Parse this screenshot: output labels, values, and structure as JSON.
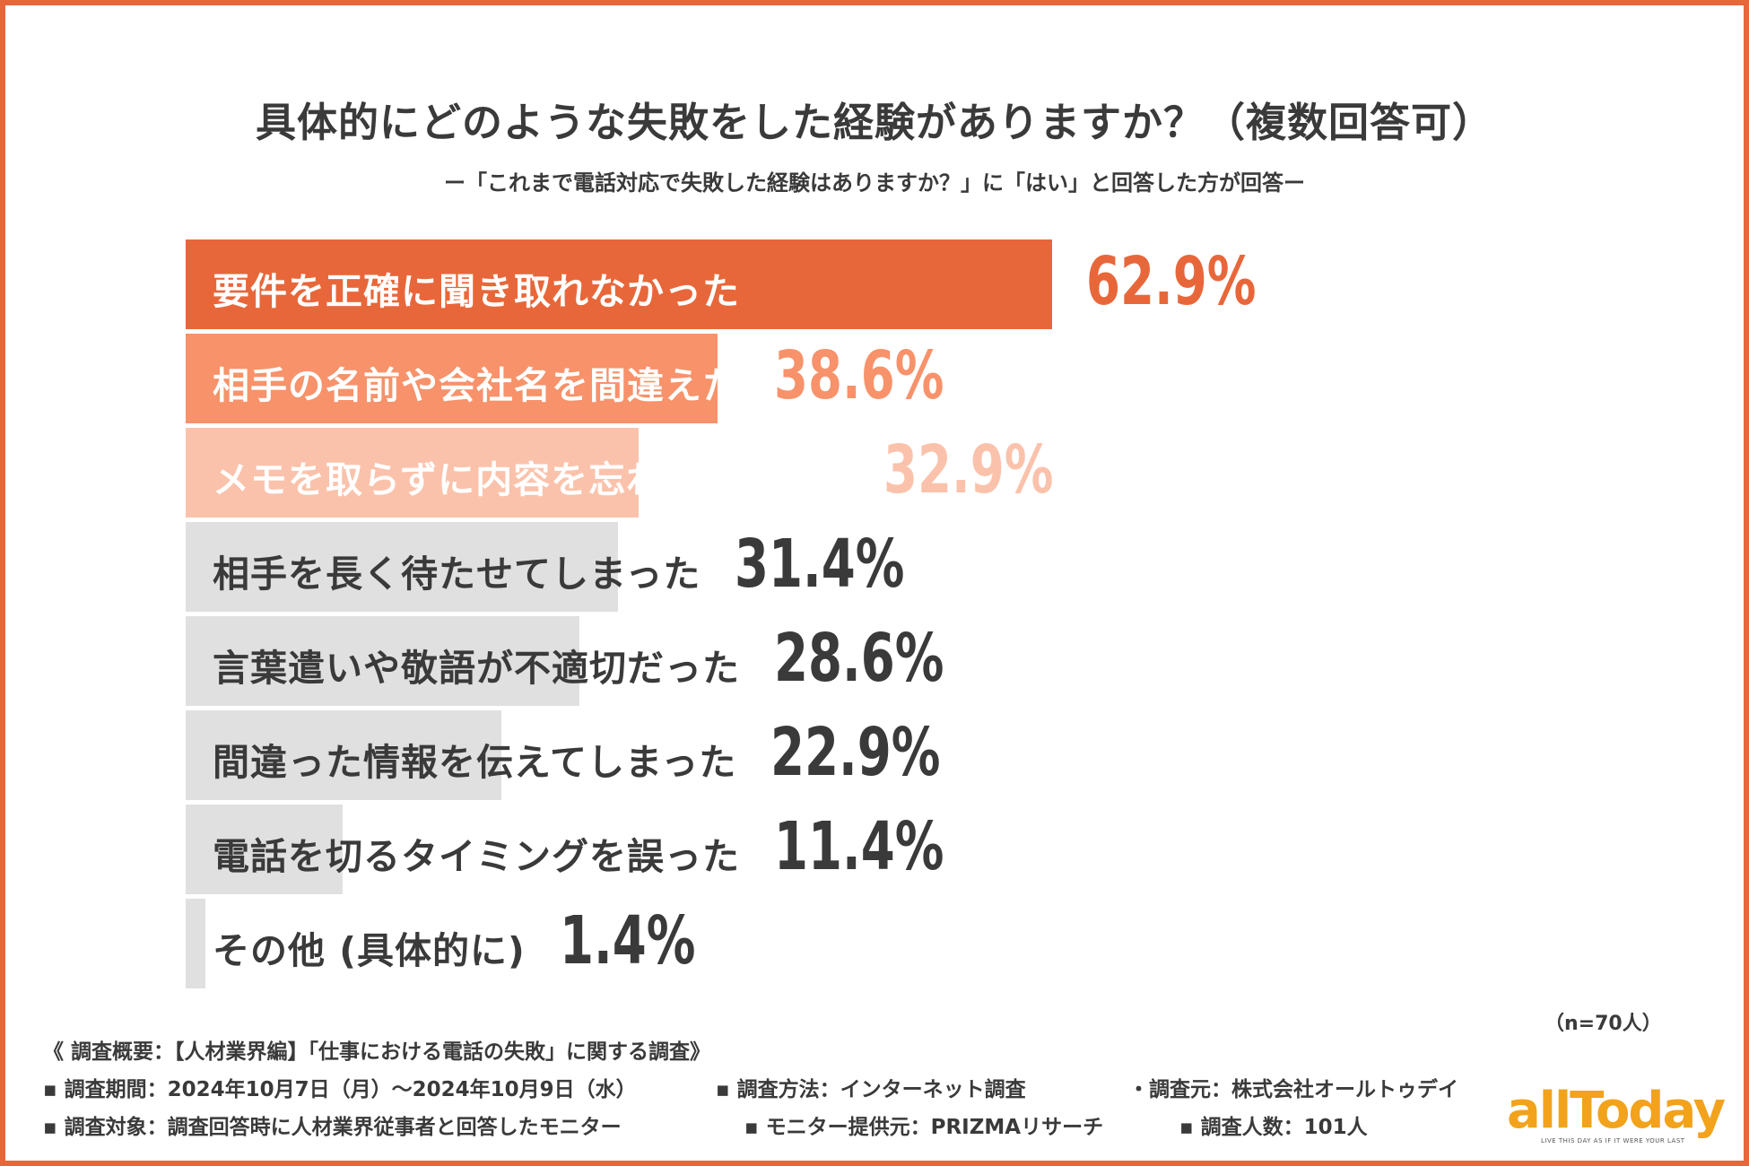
{
  "title": "具体的にどのような失敗をした経験がありますか？（複数回答可）",
  "subtitle": "ー「これまで電話対応で失敗した経験はありますか？」に「はい」と回答した方が回答ー",
  "chart_data": {
    "type": "bar",
    "orientation": "horizontal",
    "title": "具体的にどのような失敗をした経験がありますか？（複数回答可）",
    "categories": [
      "要件を正確に聞き取れなかった",
      "相手の名前や会社名を間違えた",
      "メモを取らずに内容を忘れてしまった",
      "相手を長く待たせてしまった",
      "言葉遣いや敬語が不適切だった",
      "間違った情報を伝えてしまった",
      "電話を切るタイミングを誤った",
      "その他 (具体的に)"
    ],
    "values": [
      62.9,
      38.6,
      32.9,
      31.4,
      28.6,
      22.9,
      11.4,
      1.4
    ],
    "value_labels": [
      "62.9%",
      "38.6%",
      "32.9%",
      "31.4%",
      "28.6%",
      "22.9%",
      "11.4%",
      "1.4%"
    ],
    "bar_colors": [
      "#e8673a",
      "#f7926a",
      "#fbc2ab",
      "#e0e0e0",
      "#e0e0e0",
      "#e0e0e0",
      "#e0e0e0",
      "#e0e0e0"
    ],
    "label_colors": [
      "#ffffff",
      "#ffffff",
      "#ffffff",
      "#3a3a3a",
      "#3a3a3a",
      "#3a3a3a",
      "#3a3a3a",
      "#3a3a3a"
    ],
    "value_colors": [
      "#e8673a",
      "#f7926a",
      "#fbc2ab",
      "#3a3a3a",
      "#3a3a3a",
      "#3a3a3a",
      "#3a3a3a",
      "#3a3a3a"
    ],
    "grid": false,
    "legend": "none"
  },
  "n_label": "（n=70人）",
  "notes": {
    "overview": "《 調査概要：【人材業界編】「仕事における電話の失敗」に関する調査》",
    "period": "▪ 調査期間：2024年10月7日（月）～2024年10月9日（水）",
    "method": "▪ 調査方法：インターネット調査",
    "source": "・調査元：株式会社オールトゥデイ",
    "target": "▪ 調査対象：調査回答時に人材業界従事者と回答したモニター",
    "provider": "▪ モニター提供元：PRIZMAリサーチ",
    "count": "▪ 調査人数：101人"
  },
  "logo": {
    "word": "allToday",
    "tagline": "LIVE THIS DAY AS IF IT WERE YOUR LAST"
  }
}
